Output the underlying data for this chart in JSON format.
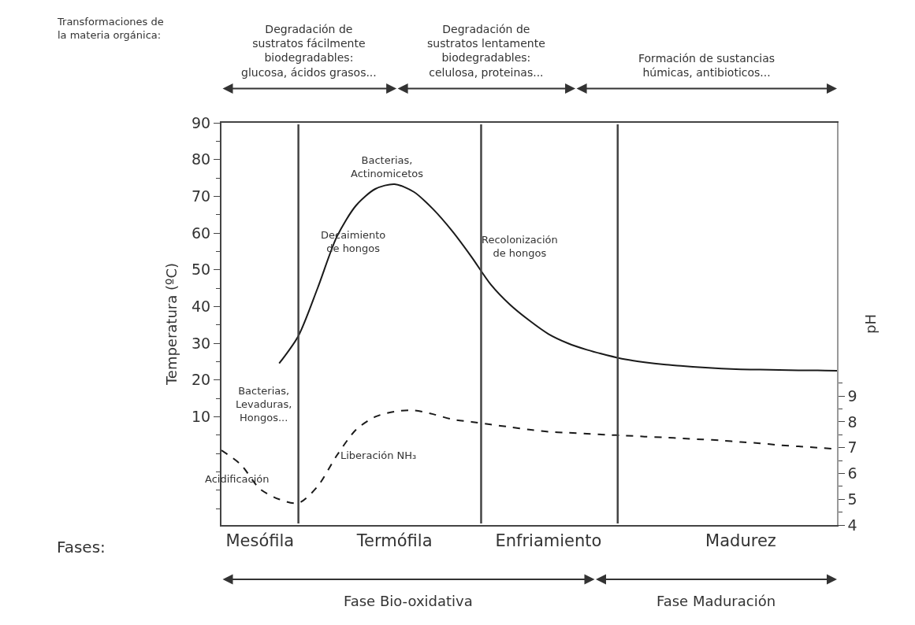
{
  "chart_data": {
    "type": "line",
    "ylabel": "Temperatura (ºC)",
    "y2label": "pH",
    "categories": [
      null,
      null,
      "Mesófila",
      null,
      null,
      null,
      null,
      null,
      null,
      "Termófila",
      null,
      null,
      null,
      null,
      null,
      null,
      null,
      "Enfriamiento",
      null,
      null,
      null,
      null,
      null,
      null,
      null,
      null,
      null,
      "Madurez",
      null,
      null,
      null,
      null,
      null
    ],
    "ylim": [
      -19.5,
      90
    ],
    "yticks": [
      10,
      20,
      30,
      40,
      50,
      60,
      70,
      80,
      90,
      {
        "value": -15,
        "label": null
      },
      {
        "value": -10,
        "label": null
      },
      {
        "value": -5,
        "label": null
      },
      {
        "value": 0,
        "label": null
      },
      {
        "value": 5,
        "label": null
      },
      {
        "value": 15,
        "label": null
      },
      {
        "value": 25,
        "label": null
      },
      {
        "value": 35,
        "label": null
      },
      {
        "value": 45,
        "label": null
      },
      {
        "value": 55,
        "label": null
      },
      {
        "value": 65,
        "label": null
      },
      {
        "value": 75,
        "label": null
      },
      {
        "value": 85,
        "label": null
      }
    ],
    "y2lim": [
      4,
      19.6
    ],
    "y2ticks": [
      4,
      5,
      6,
      7,
      8,
      9,
      {
        "value": 4.5,
        "label": null
      },
      {
        "value": 5.5,
        "label": null
      },
      {
        "value": 6.5,
        "label": null
      },
      {
        "value": 7.5,
        "label": null
      },
      {
        "value": 8.5,
        "label": null
      },
      {
        "value": 9.5,
        "label": null
      }
    ],
    "marker": "none",
    "series": [
      {
        "color": "#1a1a1a",
        "line_style": "solid",
        "values": [
          null,
          null,
          null,
          24.5,
          32,
          45,
          59,
          67.5,
          72,
          73.3,
          71.2,
          66.5,
          60.5,
          53.5,
          46,
          40.5,
          36.2,
          32.5,
          30,
          28.2,
          26.8,
          25.6,
          24.8,
          24.2,
          23.8,
          23.4,
          23.1,
          22.9,
          22.8,
          22.7,
          22.6,
          22.6,
          22.5
        ]
      },
      {
        "color": "#1a1a1a",
        "line_style": "dashed",
        "axis": "y2",
        "values": [
          6.9,
          6.35,
          5.4,
          5.0,
          4.85,
          5.5,
          6.7,
          7.7,
          8.2,
          8.4,
          8.45,
          8.3,
          8.1,
          8.0,
          7.9,
          7.8,
          7.7,
          7.62,
          7.58,
          7.54,
          7.5,
          7.47,
          7.43,
          7.4,
          7.36,
          7.32,
          7.28,
          7.22,
          7.17,
          7.1,
          7.05,
          7.0,
          6.95
        ]
      }
    ],
    "annotations": [
      "Transformaciones de\nla materia orgánica:",
      "Fases:",
      "Bacterias,\nActinomicetos",
      "Decaimiento\nde hongos",
      "Recolonización\nde hongos",
      "Bacterias,\nLevaduras,\nHongos...",
      "Liberación NH₃",
      "Acidificación",
      "Degradación de\nsustratos fácilmente\nbiodegradables:\nglucosa, ácidos grasos...",
      "Degradación de\nsustratos lentamente\nbiodegradables:\ncelulosa, proteinas...",
      "Formación de sustancias\nhúmicas, antibioticos...",
      "Fase Bio-oxidativa",
      "Fase Maduración"
    ]
  }
}
